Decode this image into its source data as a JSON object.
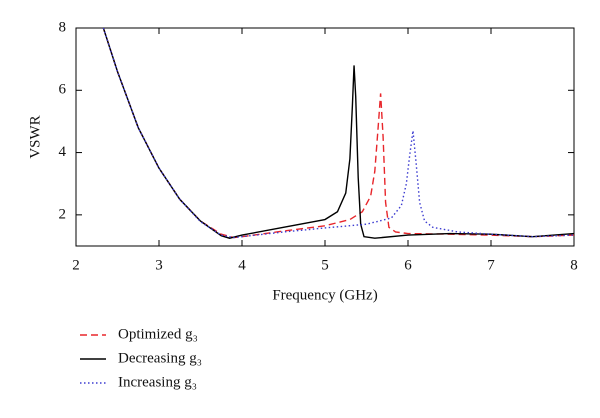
{
  "chart_data": {
    "type": "line",
    "xlabel": "Frequency (GHz)",
    "ylabel": "VSWR",
    "xlim": [
      2,
      8
    ],
    "xticks": [
      2,
      3,
      4,
      5,
      6,
      7,
      8
    ],
    "ylim": [
      1,
      8
    ],
    "yticks": [
      2,
      4,
      6,
      8
    ],
    "series": [
      {
        "name": "Optimized g₃",
        "color": "#e8262b",
        "style": "dashed",
        "x": [
          2.33,
          2.5,
          2.75,
          3.0,
          3.25,
          3.5,
          3.75,
          3.9,
          4.0,
          4.5,
          5.0,
          5.3,
          5.45,
          5.55,
          5.6,
          5.64,
          5.67,
          5.7,
          5.73,
          5.77,
          5.85,
          6.0,
          6.5,
          7.0,
          7.5,
          8.0
        ],
        "values": [
          8,
          6.6,
          4.8,
          3.5,
          2.5,
          1.8,
          1.38,
          1.27,
          1.3,
          1.48,
          1.65,
          1.85,
          2.1,
          2.6,
          3.4,
          4.8,
          5.9,
          4.5,
          2.4,
          1.6,
          1.45,
          1.4,
          1.38,
          1.35,
          1.3,
          1.35
        ]
      },
      {
        "name": "Decreasing g₃",
        "color": "#000000",
        "style": "solid",
        "x": [
          2.33,
          2.5,
          2.75,
          3.0,
          3.25,
          3.5,
          3.75,
          3.85,
          4.0,
          4.5,
          5.0,
          5.15,
          5.25,
          5.3,
          5.33,
          5.35,
          5.37,
          5.4,
          5.43,
          5.47,
          5.6,
          6.0,
          6.5,
          7.0,
          7.5,
          8.0
        ],
        "values": [
          8,
          6.6,
          4.8,
          3.5,
          2.5,
          1.8,
          1.33,
          1.25,
          1.35,
          1.6,
          1.85,
          2.1,
          2.7,
          3.8,
          5.5,
          6.8,
          5.8,
          3.2,
          1.7,
          1.3,
          1.25,
          1.35,
          1.4,
          1.38,
          1.3,
          1.4
        ]
      },
      {
        "name": "Increasing g₃",
        "color": "#3b3bd0",
        "style": "dotted",
        "x": [
          2.33,
          2.5,
          2.75,
          3.0,
          3.25,
          3.5,
          3.75,
          3.9,
          4.0,
          4.5,
          5.0,
          5.5,
          5.8,
          5.92,
          5.98,
          6.02,
          6.06,
          6.1,
          6.14,
          6.2,
          6.3,
          6.6,
          7.0,
          7.5,
          8.0
        ],
        "values": [
          8,
          6.6,
          4.8,
          3.5,
          2.5,
          1.78,
          1.35,
          1.27,
          1.3,
          1.45,
          1.58,
          1.7,
          1.9,
          2.3,
          3.0,
          3.9,
          4.7,
          3.6,
          2.4,
          1.8,
          1.6,
          1.45,
          1.38,
          1.3,
          1.35
        ]
      }
    ]
  }
}
